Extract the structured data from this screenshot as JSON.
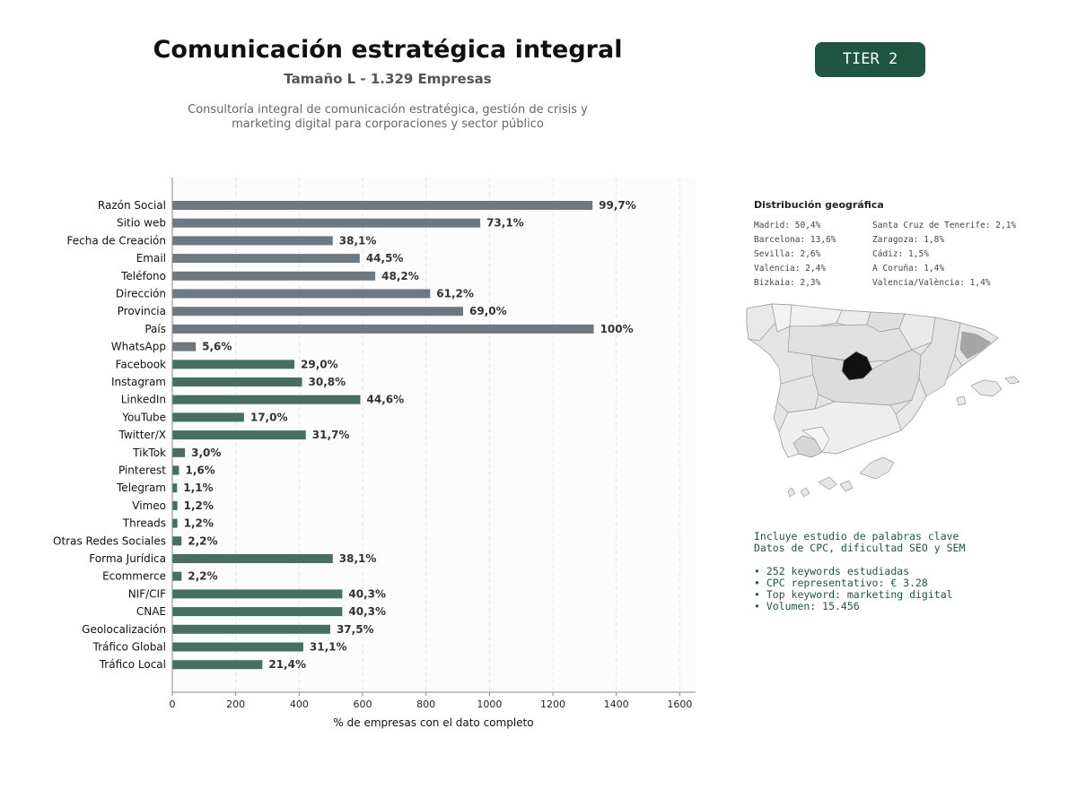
{
  "header": {
    "title": "Comunicación estratégica integral",
    "subtitle": "Tamaño L - 1.329 Empresas",
    "description_line1": "Consultoría integral de comunicación estratégica, gestión de crisis y",
    "description_line2": "marketing digital para corporaciones y sector público",
    "tier_badge": "TIER 2"
  },
  "colors": {
    "gray_bar": "#6e7881",
    "green_bar": "#45705f",
    "badge": "#1e5642",
    "madrid": "#111111",
    "barcelona": "#a5a5a5"
  },
  "chart_data": {
    "type": "bar",
    "orientation": "horizontal",
    "xlabel": "% de empresas con el dato completo",
    "xlim": [
      0,
      1650
    ],
    "xticks": [
      0,
      200,
      400,
      600,
      800,
      1000,
      1200,
      1400,
      1600
    ],
    "grid": "vertical dashed",
    "categories": [
      "Razón Social",
      "Sitio web",
      "Fecha de Creación",
      "Email",
      "Teléfono",
      "Dirección",
      "Provincia",
      "País",
      "WhatsApp",
      "Facebook",
      "Instagram",
      "LinkedIn",
      "YouTube",
      "Twitter/X",
      "TikTok",
      "Pinterest",
      "Telegram",
      "Vimeo",
      "Threads",
      "Otras Redes Sociales",
      "Forma Jurídica",
      "Ecommerce",
      "NIF/CIF",
      "CNAE",
      "Geolocalización",
      "Tráfico Global",
      "Tráfico Local"
    ],
    "values": [
      1325,
      971,
      506,
      591,
      640,
      813,
      917,
      1329,
      74,
      385,
      409,
      593,
      226,
      421,
      40,
      21,
      15,
      16,
      16,
      29,
      506,
      29,
      536,
      536,
      498,
      413,
      284
    ],
    "labels": [
      "99,7%",
      "73,1%",
      "38,1%",
      "44,5%",
      "48,2%",
      "61,2%",
      "69,0%",
      "100%",
      "5,6%",
      "29,0%",
      "30,8%",
      "44,6%",
      "17,0%",
      "31,7%",
      "3,0%",
      "1,6%",
      "1,1%",
      "1,2%",
      "1,2%",
      "2,2%",
      "38,1%",
      "2,2%",
      "40,3%",
      "40,3%",
      "37,5%",
      "31,1%",
      "21,4%"
    ],
    "groups": [
      "gray",
      "gray",
      "gray",
      "gray",
      "gray",
      "gray",
      "gray",
      "gray",
      "gray",
      "green",
      "green",
      "green",
      "green",
      "green",
      "green",
      "green",
      "green",
      "green",
      "green",
      "green",
      "green",
      "green",
      "green",
      "green",
      "green",
      "green",
      "green"
    ]
  },
  "geo": {
    "title": "Distribución geográfica",
    "items": [
      "Madrid: 50,4%",
      "Barcelona: 13,6%",
      "Sevilla: 2,6%",
      "Valencia: 2,4%",
      "Bizkaia: 2,3%",
      "Santa Cruz de Tenerife: 2,1%",
      "Zaragoza: 1,8%",
      "Cádiz: 1,5%",
      "A Coruña: 1,4%",
      "Valencia/València: 1,4%"
    ]
  },
  "keywords": {
    "line1": "Incluye estudio de palabras clave",
    "line2": "Datos de CPC, dificultad SEO y SEM",
    "bullets": [
      "• 252 keywords estudiadas",
      "• CPC representativo: € 3.28",
      "• Top keyword: marketing digital",
      "• Volumen: 15.456"
    ]
  }
}
